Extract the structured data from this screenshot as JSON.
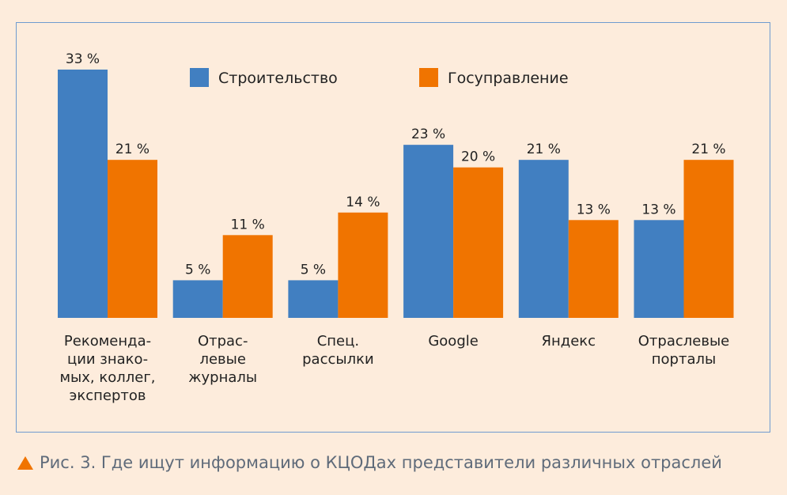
{
  "chart_data": {
    "type": "bar",
    "categories": [
      [
        "Рекоменда-",
        "ции знако-",
        "мых, коллег,",
        "экспертов"
      ],
      [
        "Отрас-",
        "левые",
        "журналы"
      ],
      [
        "Спец.",
        "рассылки"
      ],
      [
        "Google"
      ],
      [
        "Яндекс"
      ],
      [
        "Отраслевые",
        "порталы"
      ]
    ],
    "series": [
      {
        "name": "Строительство",
        "color": "#417fc1",
        "values": [
          33,
          5,
          5,
          23,
          21,
          13
        ]
      },
      {
        "name": "Госуправление",
        "color": "#f07400",
        "values": [
          21,
          11,
          14,
          20,
          13,
          21
        ]
      }
    ],
    "value_suffix": " %",
    "ylim": [
      0,
      33
    ],
    "grid": false,
    "legend": "top"
  },
  "caption": "Рис. 3. Где ищут информацию о КЦОДах представители различных отраслей",
  "caption_marker_color": "#f07400"
}
